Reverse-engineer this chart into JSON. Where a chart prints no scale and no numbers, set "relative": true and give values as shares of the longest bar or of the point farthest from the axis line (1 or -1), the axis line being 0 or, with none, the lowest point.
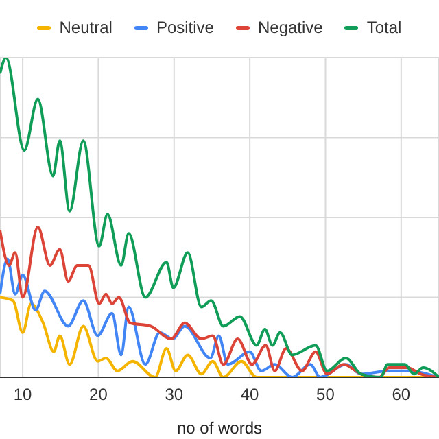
{
  "chart_data": {
    "type": "line",
    "relative": true,
    "xlabel": "no of words",
    "xlim": [
      7,
      65
    ],
    "xticks": [
      10,
      20,
      30,
      40,
      50,
      60
    ],
    "grid": true,
    "legend": "top",
    "marker": "none",
    "line_style": "solid",
    "series": [
      {
        "name": "Neutral",
        "color": "#f4b400",
        "x": [
          7,
          8.7,
          10,
          11.1,
          12.7,
          14.1,
          14.9,
          16.2,
          18,
          19.9,
          21,
          22.5,
          24.5,
          27.5,
          29,
          30.2,
          31.8,
          33.6,
          35.1,
          36.5,
          38.9,
          40.9,
          45.6,
          65
        ],
        "values": [
          0.25,
          0.24,
          0.14,
          0.23,
          0.17,
          0.08,
          0.13,
          0.04,
          0.16,
          0.05,
          0.06,
          0.02,
          0.05,
          0,
          0.09,
          0.02,
          0.07,
          0.01,
          0.05,
          0,
          0.05,
          0,
          0,
          0
        ]
      },
      {
        "name": "Positive",
        "color": "#4285f4",
        "x": [
          7,
          8,
          9,
          10,
          11.7,
          12.9,
          16,
          18,
          19.9,
          21.8,
          23,
          24,
          26.2,
          28.1,
          29.8,
          31.4,
          34.8,
          35.9,
          37.1,
          40,
          41.5,
          43.3,
          45.6,
          48,
          49.3,
          52.7,
          54.7,
          58.4,
          60.8,
          65
        ],
        "values": [
          0.26,
          0.37,
          0.26,
          0.32,
          0.21,
          0.27,
          0.16,
          0.24,
          0.13,
          0.2,
          0.07,
          0.22,
          0.04,
          0.14,
          0.12,
          0.16,
          0.06,
          0.13,
          0.04,
          0.08,
          0.02,
          0.04,
          0,
          0.04,
          0,
          0.04,
          0.01,
          0.02,
          0.02,
          0
        ]
      },
      {
        "name": "Negative",
        "color": "#db4437",
        "x": [
          7,
          8.2,
          9,
          10,
          12,
          13.6,
          14.9,
          16,
          17.2,
          18.7,
          20.1,
          21,
          21.8,
          22.7,
          24.2,
          26.9,
          29.6,
          31.4,
          33.6,
          35.1,
          36.5,
          38.4,
          40.3,
          42.1,
          43.3,
          44.8,
          46.9,
          48.7,
          50.2,
          52.4,
          54.7,
          57.1,
          58.4,
          60.8,
          62.6,
          65
        ],
        "values": [
          0.46,
          0.35,
          0.39,
          0.25,
          0.47,
          0.35,
          0.4,
          0.3,
          0.35,
          0.35,
          0.23,
          0.26,
          0.23,
          0.25,
          0.17,
          0.16,
          0.12,
          0.17,
          0.12,
          0.13,
          0.04,
          0.12,
          0.04,
          0.1,
          0.02,
          0.09,
          0.02,
          0.08,
          0.01,
          0.04,
          0.01,
          0,
          0.03,
          0.03,
          0.01,
          0
        ]
      },
      {
        "name": "Total",
        "color": "#0f9d58",
        "x": [
          7,
          7.8,
          10.2,
          12,
          14,
          14.9,
          16.2,
          18,
          20.1,
          21.2,
          23,
          24,
          26.2,
          29,
          29.9,
          31.8,
          33.6,
          34.9,
          36.5,
          38.7,
          40.9,
          42,
          43,
          44,
          45.6,
          48.7,
          50.2,
          52.7,
          54.7,
          57.3,
          58.2,
          60.5,
          61.7,
          62.9,
          65
        ],
        "values": [
          0.95,
          1,
          0.71,
          0.87,
          0.63,
          0.74,
          0.52,
          0.74,
          0.41,
          0.51,
          0.35,
          0.45,
          0.25,
          0.36,
          0.28,
          0.39,
          0.22,
          0.24,
          0.16,
          0.19,
          0.1,
          0.15,
          0.1,
          0.14,
          0.07,
          0.1,
          0.02,
          0.06,
          0.01,
          0,
          0.04,
          0.04,
          0.01,
          0.03,
          0
        ]
      }
    ]
  }
}
